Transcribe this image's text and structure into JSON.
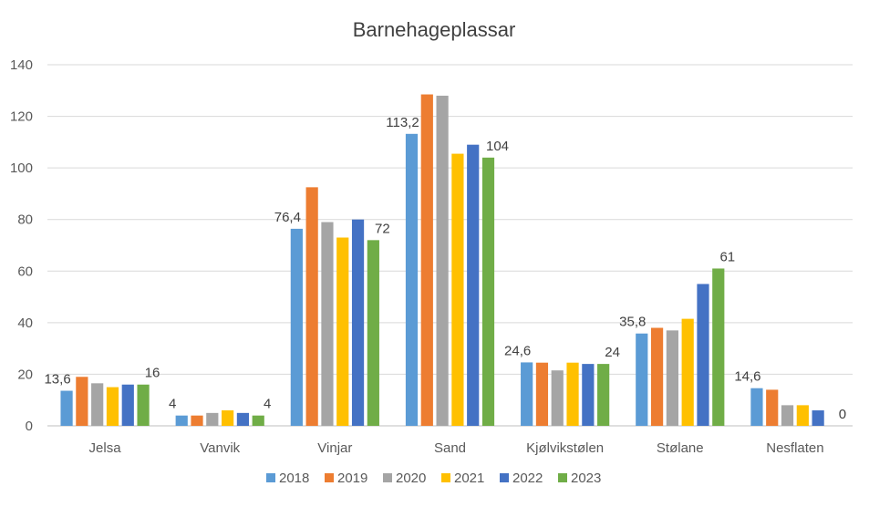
{
  "chart_data": {
    "type": "bar",
    "title": "Barnehageplassar",
    "xlabel": "",
    "ylabel": "",
    "ylim": [
      0,
      140
    ],
    "yticks": [
      0,
      20,
      40,
      60,
      80,
      100,
      120,
      140
    ],
    "grid": true,
    "legend_position": "bottom",
    "categories": [
      "Jelsa",
      "Vanvik",
      "Vinjar",
      "Sand",
      "Kjølvikstølen",
      "Stølane",
      "Nesflaten"
    ],
    "series": [
      {
        "name": "2018",
        "color": "#5B9BD5",
        "values": [
          13.6,
          4,
          76.4,
          113.2,
          24.6,
          35.8,
          14.6
        ]
      },
      {
        "name": "2019",
        "color": "#ED7D31",
        "values": [
          19,
          4,
          92.5,
          128.5,
          24.5,
          38,
          14
        ]
      },
      {
        "name": "2020",
        "color": "#A5A5A5",
        "values": [
          16.5,
          5,
          79,
          128,
          21.5,
          37,
          8
        ]
      },
      {
        "name": "2021",
        "color": "#FFC000",
        "values": [
          15,
          6,
          73,
          105.5,
          24.5,
          41.5,
          8
        ]
      },
      {
        "name": "2022",
        "color": "#4472C4",
        "values": [
          16,
          5,
          80,
          109,
          24,
          55,
          6
        ]
      },
      {
        "name": "2023",
        "color": "#70AD47",
        "values": [
          16,
          4,
          72,
          104,
          24,
          61,
          0
        ]
      }
    ],
    "data_labels": [
      {
        "category": 0,
        "series": 0,
        "text": "13,6"
      },
      {
        "category": 0,
        "series": 5,
        "text": "16"
      },
      {
        "category": 1,
        "series": 0,
        "text": "4"
      },
      {
        "category": 1,
        "series": 5,
        "text": "4"
      },
      {
        "category": 2,
        "series": 0,
        "text": "76,4"
      },
      {
        "category": 2,
        "series": 5,
        "text": "72"
      },
      {
        "category": 3,
        "series": 0,
        "text": "113,2"
      },
      {
        "category": 3,
        "series": 5,
        "text": "104"
      },
      {
        "category": 4,
        "series": 0,
        "text": "24,6"
      },
      {
        "category": 4,
        "series": 5,
        "text": "24"
      },
      {
        "category": 5,
        "series": 0,
        "text": "35,8"
      },
      {
        "category": 5,
        "series": 5,
        "text": "61"
      },
      {
        "category": 6,
        "series": 0,
        "text": "14,6"
      },
      {
        "category": 6,
        "series": 5,
        "text": "0"
      }
    ]
  }
}
